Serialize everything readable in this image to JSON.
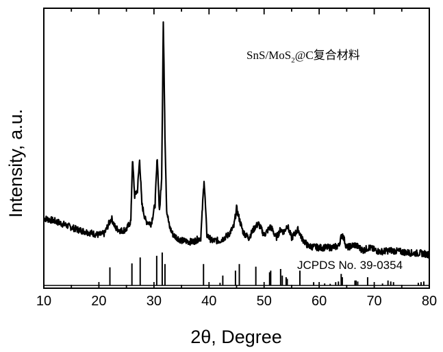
{
  "chart_data": {
    "type": "line",
    "xlabel": "2θ, Degree",
    "ylabel": "Intensity, a.u.",
    "xlim": [
      10,
      80
    ],
    "ylim": [
      0,
      100
    ],
    "x_ticks": [
      "10",
      "20",
      "30",
      "40",
      "50",
      "60",
      "70",
      "80"
    ],
    "series": [
      {
        "name": "SnS/MoS₂@C复合材料",
        "x": [
          10,
          12,
          14,
          16,
          18,
          20,
          21,
          21.8,
          22.3,
          23,
          24,
          25,
          25.8,
          26.1,
          26.5,
          27.0,
          27.4,
          27.8,
          28.5,
          29.5,
          30.2,
          30.6,
          31.0,
          31.4,
          31.7,
          32.0,
          32.3,
          32.8,
          33.5,
          35,
          37,
          38.5,
          39.1,
          39.6,
          40.5,
          42,
          43.5,
          44.5,
          45.0,
          45.6,
          46.2,
          47.2,
          48.4,
          49.0,
          50.0,
          51.2,
          52.2,
          53.0,
          53.6,
          54.2,
          55.0,
          56.2,
          56.8,
          58,
          60,
          62,
          63.5,
          64.2,
          65.0,
          66.5,
          68.0,
          69.0,
          71,
          73,
          75,
          77,
          78.5,
          80
        ],
        "values": [
          25,
          24,
          22.5,
          21,
          20,
          19,
          19.5,
          23,
          25,
          21.5,
          20.5,
          21,
          24,
          46,
          33,
          35,
          46,
          30,
          24,
          23,
          30,
          47,
          27,
          40,
          95,
          55,
          28,
          22,
          19,
          17,
          16.5,
          18,
          39,
          19,
          17,
          17,
          19,
          22,
          28.5,
          24,
          20,
          18,
          22,
          23,
          19,
          22,
          18,
          21,
          20,
          22.5,
          18,
          21,
          18,
          15,
          14.5,
          14.5,
          15,
          19.5,
          14.5,
          15.5,
          13.5,
          14.5,
          13,
          13.5,
          13,
          12.5,
          12.5,
          12
        ]
      }
    ],
    "reference": {
      "name": "JCPDS No. 39-0354",
      "positions": [
        22.0,
        26.0,
        27.5,
        30.5,
        31.5,
        32.0,
        39.0,
        42.0,
        42.5,
        44.8,
        45.5,
        48.5,
        51.0,
        51.2,
        53.0,
        53.3,
        54.0,
        54.2,
        56.5,
        59.0,
        61.0,
        62.0,
        63.0,
        63.5,
        64.0,
        64.2,
        66.5,
        66.7,
        67.0,
        68.8,
        71.5,
        72.5,
        73.0,
        73.5,
        78.0,
        78.5,
        79.0
      ],
      "intensities": [
        0.55,
        0.67,
        0.85,
        0.9,
        1.0,
        0.65,
        0.65,
        0.08,
        0.3,
        0.45,
        0.65,
        0.57,
        0.4,
        0.45,
        0.5,
        0.3,
        0.25,
        0.2,
        0.45,
        0.1,
        0.06,
        0.05,
        0.1,
        0.12,
        0.35,
        0.25,
        0.15,
        0.15,
        0.12,
        0.25,
        0.06,
        0.15,
        0.12,
        0.1,
        0.08,
        0.1,
        0.12
      ]
    },
    "annotations": {
      "material_prefix": "SnS/MoS",
      "material_subscript": "2",
      "material_suffix": "@C复合材料",
      "reference_label": "JCPDS No. 39-0354"
    },
    "grid": false
  }
}
